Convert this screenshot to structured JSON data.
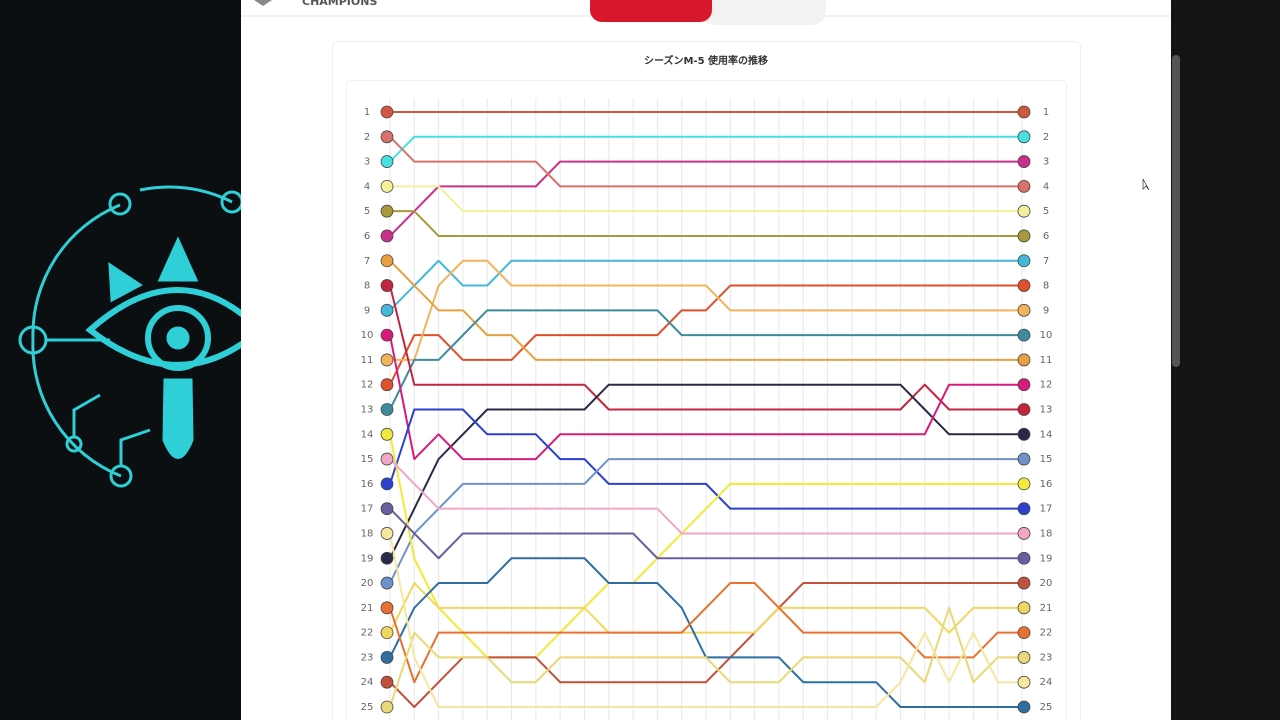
{
  "header": {
    "brand": "CHAMPIONS"
  },
  "chart_data": {
    "type": "bump",
    "title": "シーズンM-5 使用率の推移",
    "categories": [
      null,
      null,
      null,
      null,
      null,
      null,
      null,
      null,
      null,
      null,
      null,
      null,
      null,
      null,
      null,
      null,
      null,
      null,
      null,
      null,
      null,
      null,
      null,
      null,
      null,
      null,
      null
    ],
    "ylim": [
      1,
      25
    ],
    "yticks": [
      1,
      2,
      3,
      4,
      5,
      6,
      7,
      8,
      9,
      10,
      11,
      12,
      13,
      14,
      15,
      16,
      17,
      18,
      19,
      20,
      21,
      22,
      23,
      24,
      25
    ],
    "grid": true,
    "series": [
      {
        "color": "#d2553f",
        "values": [
          1,
          1,
          1,
          1,
          1,
          1,
          1,
          1,
          1,
          1,
          1,
          1,
          1,
          1,
          1,
          1,
          1,
          1,
          1,
          1,
          1,
          1,
          1,
          1,
          1,
          1,
          1
        ]
      },
      {
        "color": "#46e0e0",
        "values": [
          3,
          2,
          2,
          2,
          2,
          2,
          2,
          2,
          2,
          2,
          2,
          2,
          2,
          2,
          2,
          2,
          2,
          2,
          2,
          2,
          2,
          2,
          2,
          2,
          2,
          2,
          2
        ]
      },
      {
        "color": "#c8308c",
        "values": [
          6,
          5,
          4,
          4,
          4,
          4,
          4,
          3,
          3,
          3,
          3,
          3,
          3,
          3,
          3,
          3,
          3,
          3,
          3,
          3,
          3,
          3,
          3,
          3,
          3,
          3,
          3
        ]
      },
      {
        "color": "#d9716a",
        "values": [
          2,
          3,
          3,
          3,
          3,
          3,
          3,
          4,
          4,
          4,
          4,
          4,
          4,
          4,
          4,
          4,
          4,
          4,
          4,
          4,
          4,
          4,
          4,
          4,
          4,
          4,
          4
        ]
      },
      {
        "color": "#f3ef9a",
        "values": [
          4,
          4,
          4,
          5,
          5,
          5,
          5,
          5,
          5,
          5,
          5,
          5,
          5,
          5,
          5,
          5,
          5,
          5,
          5,
          5,
          5,
          5,
          5,
          5,
          5,
          5,
          5
        ]
      },
      {
        "color": "#a89a3a",
        "values": [
          5,
          5,
          6,
          6,
          6,
          6,
          6,
          6,
          6,
          6,
          6,
          6,
          6,
          6,
          6,
          6,
          6,
          6,
          6,
          6,
          6,
          6,
          6,
          6,
          6,
          6,
          6
        ]
      },
      {
        "color": "#43b8d8",
        "values": [
          9,
          8,
          7,
          8,
          8,
          7,
          7,
          7,
          7,
          7,
          7,
          7,
          7,
          7,
          7,
          7,
          7,
          7,
          7,
          7,
          7,
          7,
          7,
          7,
          7,
          7,
          7
        ]
      },
      {
        "color": "#e0502a",
        "values": [
          12,
          10,
          10,
          11,
          11,
          11,
          10,
          10,
          10,
          10,
          10,
          10,
          9,
          9,
          8,
          8,
          8,
          8,
          8,
          8,
          8,
          8,
          8,
          8,
          8,
          8,
          8
        ]
      },
      {
        "color": "#f2b45a",
        "values": [
          11,
          11,
          8,
          7,
          7,
          8,
          8,
          8,
          8,
          8,
          8,
          8,
          8,
          8,
          9,
          9,
          9,
          9,
          9,
          9,
          9,
          9,
          9,
          9,
          9,
          9,
          9
        ]
      },
      {
        "color": "#e8a040",
        "values": [
          7,
          8,
          9,
          9,
          10,
          10,
          11,
          11,
          11,
          11,
          11,
          11,
          11,
          11,
          11,
          11,
          11,
          11,
          11,
          11,
          11,
          11,
          11,
          11,
          11,
          11,
          11
        ]
      },
      {
        "color": "#3d8c9e",
        "values": [
          13,
          11,
          11,
          10,
          9,
          9,
          9,
          9,
          9,
          9,
          9,
          9,
          10,
          10,
          10,
          10,
          10,
          10,
          10,
          10,
          10,
          10,
          10,
          10,
          10,
          10,
          10
        ]
      },
      {
        "color": "#c4243e",
        "values": [
          8,
          12,
          12,
          12,
          12,
          12,
          12,
          12,
          12,
          13,
          13,
          13,
          13,
          13,
          13,
          13,
          13,
          13,
          13,
          13,
          13,
          13,
          12,
          13,
          13,
          13,
          13
        ]
      },
      {
        "color": "#2a2a48",
        "values": [
          19,
          17,
          15,
          14,
          13,
          13,
          13,
          13,
          13,
          12,
          12,
          12,
          12,
          12,
          12,
          12,
          12,
          12,
          12,
          12,
          12,
          12,
          13,
          14,
          14,
          14,
          14
        ]
      },
      {
        "color": "#d81b7a",
        "values": [
          10,
          15,
          14,
          15,
          15,
          15,
          15,
          14,
          14,
          14,
          14,
          14,
          14,
          14,
          14,
          14,
          14,
          14,
          14,
          14,
          14,
          14,
          14,
          12,
          12,
          12,
          12
        ]
      },
      {
        "color": "#2b3fd0",
        "values": [
          16,
          13,
          13,
          13,
          14,
          14,
          14,
          15,
          15,
          16,
          16,
          16,
          16,
          16,
          17,
          17,
          17,
          17,
          17,
          17,
          17,
          17,
          17,
          17,
          17,
          17,
          17
        ]
      },
      {
        "color": "#6f93c8",
        "values": [
          20,
          18,
          17,
          16,
          16,
          16,
          16,
          16,
          16,
          15,
          15,
          15,
          15,
          15,
          15,
          15,
          15,
          15,
          15,
          15,
          15,
          15,
          15,
          15,
          15,
          15,
          15
        ]
      },
      {
        "color": "#f4e83a",
        "values": [
          14,
          19,
          21,
          22,
          23,
          23,
          23,
          22,
          21,
          20,
          20,
          19,
          18,
          17,
          16,
          16,
          16,
          16,
          16,
          16,
          16,
          16,
          16,
          16,
          16,
          16,
          16
        ]
      },
      {
        "color": "#f2a6c6",
        "values": [
          15,
          16,
          17,
          17,
          17,
          17,
          17,
          17,
          17,
          17,
          17,
          17,
          18,
          18,
          18,
          18,
          18,
          18,
          18,
          18,
          18,
          18,
          18,
          18,
          18,
          18,
          18
        ]
      },
      {
        "color": "#6b5ea0",
        "values": [
          17,
          18,
          19,
          18,
          18,
          18,
          18,
          18,
          18,
          18,
          18,
          19,
          19,
          19,
          19,
          19,
          19,
          19,
          19,
          19,
          19,
          19,
          19,
          19,
          19,
          19,
          19
        ]
      },
      {
        "color": "#c2503a",
        "values": [
          24,
          25,
          24,
          23,
          23,
          23,
          23,
          24,
          24,
          24,
          24,
          24,
          24,
          24,
          23,
          22,
          21,
          20,
          20,
          20,
          20,
          20,
          20,
          20,
          20,
          20,
          20
        ]
      },
      {
        "color": "#f0d860",
        "values": [
          22,
          20,
          21,
          21,
          21,
          21,
          21,
          21,
          21,
          22,
          22,
          22,
          22,
          22,
          22,
          22,
          21,
          21,
          21,
          21,
          21,
          21,
          21,
          22,
          21,
          21,
          21
        ]
      },
      {
        "color": "#2e6ea0",
        "values": [
          23,
          21,
          20,
          20,
          20,
          19,
          19,
          19,
          19,
          20,
          20,
          20,
          21,
          23,
          23,
          23,
          23,
          24,
          24,
          24,
          24,
          25,
          25,
          25,
          25,
          25,
          25
        ]
      },
      {
        "color": "#e87030",
        "values": [
          21,
          24,
          22,
          22,
          22,
          22,
          22,
          22,
          22,
          22,
          22,
          22,
          22,
          21,
          20,
          20,
          21,
          22,
          22,
          22,
          22,
          22,
          23,
          23,
          23,
          22,
          22
        ]
      },
      {
        "color": "#e8d878",
        "values": [
          25,
          22,
          23,
          23,
          23,
          24,
          24,
          23,
          23,
          23,
          23,
          23,
          23,
          23,
          24,
          24,
          24,
          23,
          23,
          23,
          23,
          23,
          24,
          21,
          24,
          23,
          23
        ]
      },
      {
        "color": "#f5e6a0",
        "values": [
          18,
          23,
          25,
          25,
          25,
          25,
          25,
          25,
          25,
          25,
          25,
          25,
          25,
          25,
          25,
          25,
          25,
          25,
          25,
          25,
          25,
          24,
          22,
          24,
          22,
          24,
          24
        ]
      }
    ]
  }
}
